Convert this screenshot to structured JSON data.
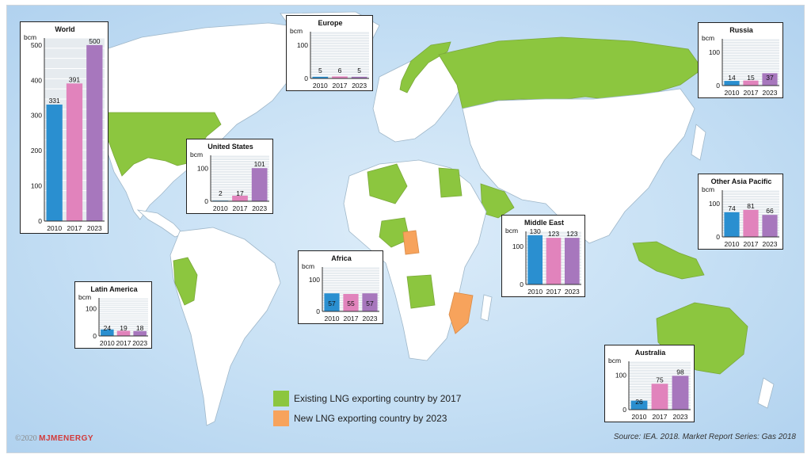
{
  "legend": [
    {
      "label": "Existing LNG exporting country by 2017",
      "color": "#8cc63f"
    },
    {
      "label": "New LNG exporting country by 2023",
      "color": "#f7a35c"
    }
  ],
  "copyright": {
    "prefix": "©2020",
    "brand": "MJMENERGY"
  },
  "source": "Source: IEA. 2018. Market Report Series: Gas 2018",
  "chart_data": [
    {
      "type": "bar",
      "title": "World",
      "ylabel": "bcm",
      "categories": [
        "2010",
        "2017",
        "2023"
      ],
      "values": [
        331,
        391,
        500
      ],
      "data_labels": [
        "331",
        "391",
        "500"
      ],
      "yticks": [
        "0",
        "100",
        "200",
        "300",
        "400",
        "500"
      ],
      "ylim": [
        0,
        520
      ],
      "colors": [
        "#2a8fd0",
        "#e183bc",
        "#a777bd"
      ]
    },
    {
      "type": "bar",
      "title": "Europe",
      "ylabel": "bcm",
      "categories": [
        "2010",
        "2017",
        "2023"
      ],
      "values": [
        5,
        6,
        5
      ],
      "data_labels": [
        "5",
        "6",
        "5"
      ],
      "yticks": [
        "0",
        "100"
      ],
      "ylim": [
        0,
        140
      ],
      "colors": [
        "#2a8fd0",
        "#e183bc",
        "#a777bd"
      ]
    },
    {
      "type": "bar",
      "title": "Russia",
      "ylabel": "bcm",
      "categories": [
        "2010",
        "2017",
        "2023"
      ],
      "values": [
        14,
        15,
        37
      ],
      "data_labels": [
        "14",
        "15",
        "37"
      ],
      "yticks": [
        "0",
        "100"
      ],
      "ylim": [
        0,
        140
      ],
      "colors": [
        "#2a8fd0",
        "#e183bc",
        "#a777bd"
      ]
    },
    {
      "type": "bar",
      "title": "United States",
      "ylabel": "bcm",
      "categories": [
        "2010",
        "2017",
        "2023"
      ],
      "values": [
        2,
        17,
        101
      ],
      "data_labels": [
        "2",
        "17",
        "101"
      ],
      "yticks": [
        "0",
        "100"
      ],
      "ylim": [
        0,
        140
      ],
      "colors": [
        "#2a8fd0",
        "#e183bc",
        "#a777bd"
      ]
    },
    {
      "type": "bar",
      "title": "Other Asia Pacific",
      "ylabel": "bcm",
      "categories": [
        "2010",
        "2017",
        "2023"
      ],
      "values": [
        74,
        81,
        66
      ],
      "data_labels": [
        "74",
        "81",
        "66"
      ],
      "yticks": [
        "0",
        "100"
      ],
      "ylim": [
        0,
        140
      ],
      "colors": [
        "#2a8fd0",
        "#e183bc",
        "#a777bd"
      ]
    },
    {
      "type": "bar",
      "title": "Middle East",
      "ylabel": "bcm",
      "categories": [
        "2010",
        "2017",
        "2023"
      ],
      "values": [
        130,
        123,
        123
      ],
      "data_labels": [
        "130",
        "123",
        "123"
      ],
      "yticks": [
        "0",
        "100"
      ],
      "ylim": [
        0,
        140
      ],
      "colors": [
        "#2a8fd0",
        "#e183bc",
        "#a777bd"
      ]
    },
    {
      "type": "bar",
      "title": "Africa",
      "ylabel": "bcm",
      "categories": [
        "2010",
        "2017",
        "2023"
      ],
      "values": [
        57,
        55,
        57
      ],
      "data_labels": [
        "57",
        "55",
        "57"
      ],
      "yticks": [
        "0",
        "100"
      ],
      "ylim": [
        0,
        140
      ],
      "colors": [
        "#2a8fd0",
        "#e183bc",
        "#a777bd"
      ]
    },
    {
      "type": "bar",
      "title": "Latin America",
      "ylabel": "bcm",
      "categories": [
        "2010",
        "2017",
        "2023"
      ],
      "values": [
        24,
        19,
        18
      ],
      "data_labels": [
        "24",
        "19",
        "18"
      ],
      "yticks": [
        "0",
        "100"
      ],
      "ylim": [
        0,
        140
      ],
      "colors": [
        "#2a8fd0",
        "#e183bc",
        "#a777bd"
      ]
    },
    {
      "type": "bar",
      "title": "Australia",
      "ylabel": "bcm",
      "categories": [
        "2010",
        "2017",
        "2023"
      ],
      "values": [
        26,
        75,
        98
      ],
      "data_labels": [
        "26",
        "75",
        "98"
      ],
      "yticks": [
        "0",
        "100"
      ],
      "ylim": [
        0,
        140
      ],
      "colors": [
        "#2a8fd0",
        "#e183bc",
        "#a777bd"
      ]
    }
  ]
}
